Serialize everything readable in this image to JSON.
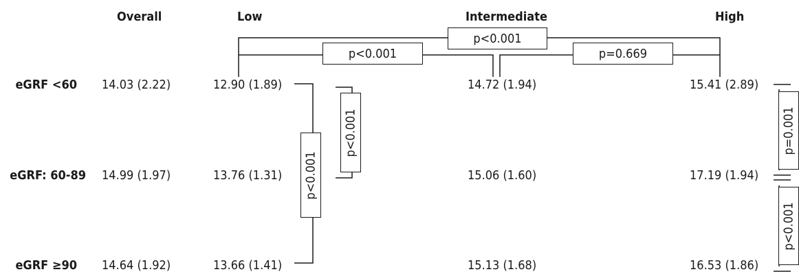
{
  "headers": {
    "overall": "Overall",
    "low": "Low",
    "intermediate": "Intermediate",
    "high": "High"
  },
  "rows": [
    {
      "label": "eGRF <60",
      "overall": "14.03 (2.22)",
      "low": "12.90 (1.89)",
      "intermediate": "14.72 (1.94)",
      "high": "15.41 (2.89)"
    },
    {
      "label": "eGRF: 60-89",
      "overall": "14.99 (1.97)",
      "low": "13.76 (1.31)",
      "intermediate": "15.06 (1.60)",
      "high": "17.19 (1.94)"
    },
    {
      "label": "eGRF ≥90",
      "overall": "14.64 (1.92)",
      "low": "13.66 (1.41)",
      "intermediate": "15.13 (1.68)",
      "high": "16.53 (1.86)"
    }
  ],
  "comparisons": {
    "low_vs_high": "p<0.001",
    "low_vs_intermediate": "p<0.001",
    "intermediate_vs_high": "p=0.669",
    "low_row1_vs_row2": "p<0.001",
    "low_row1_vs_row3": "p<0.001",
    "high_row1_vs_row2": "p=0.001",
    "high_row2_vs_row3": "p<0.001"
  }
}
